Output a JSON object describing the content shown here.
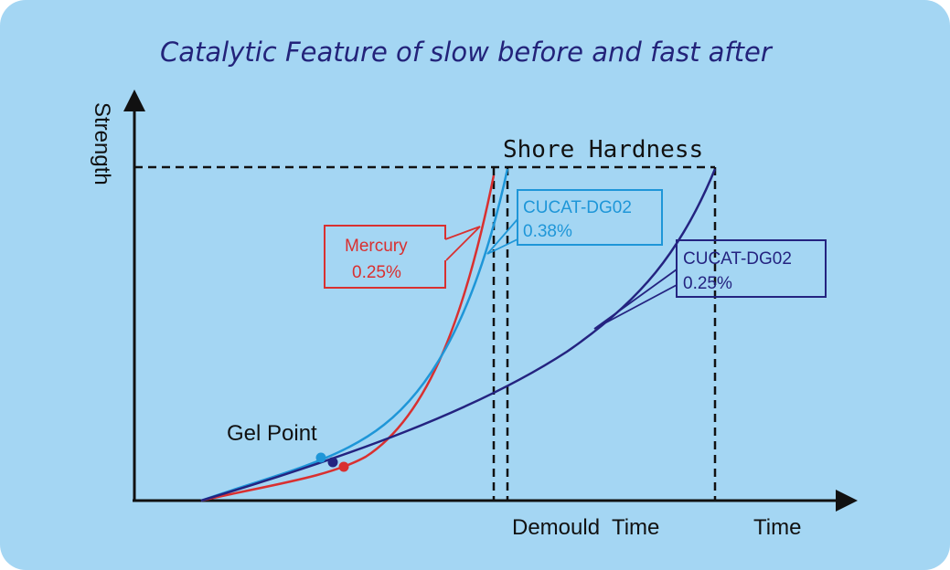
{
  "title": "Catalytic Feature of slow before and fast after",
  "y_axis_label": "Strength",
  "x_axis_label": "Time",
  "reference_label": "Shore Hardness",
  "demould_label": "Demould  Time",
  "gel_point_label": "Gel Point",
  "curves": [
    {
      "name": "Mercury",
      "value": "0.25%",
      "color": "#d93030"
    },
    {
      "name": "CUCAT-DG02",
      "value": "0.38%",
      "color": "#1e96d8"
    },
    {
      "name": "CUCAT-DG02",
      "value": "0.25%",
      "color": "#242380"
    }
  ],
  "colors": {
    "background": "#a4d6f3",
    "title": "#23237a",
    "axis": "#111111"
  }
}
